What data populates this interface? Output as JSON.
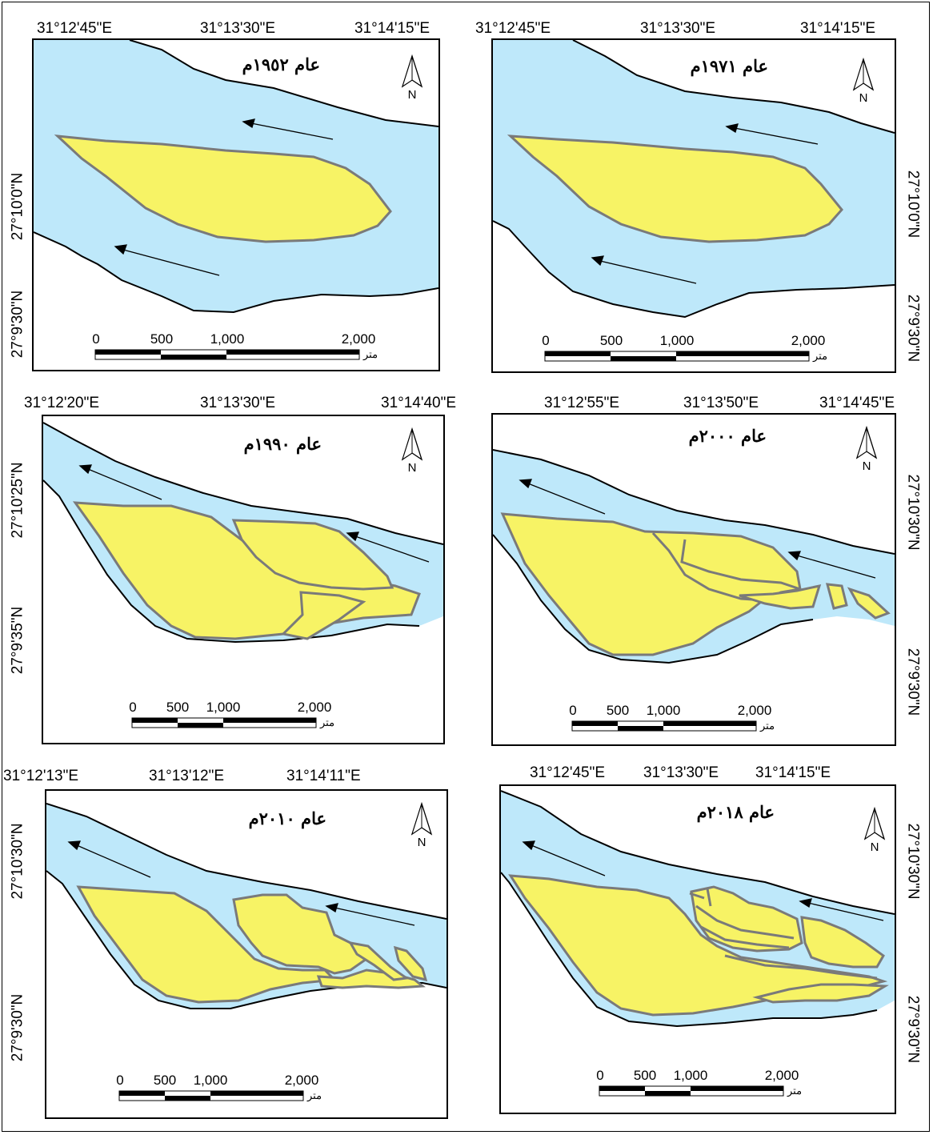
{
  "panels": [
    {
      "id": "1952",
      "title": "عام ١٩٥٢م",
      "x_ticks": [
        "31°12'45\"E",
        "31°13'30\"E",
        "31°14'15\"E"
      ],
      "y_ticks": [
        "27°10'0\"N",
        "27°9'30\"N"
      ],
      "y_side": "left",
      "scale_labels": [
        "0",
        "500",
        "1,000",
        "2,000"
      ],
      "scale_unit": "متر",
      "north": "N"
    },
    {
      "id": "1971",
      "title": "عام ١٩٧١م",
      "x_ticks": [
        "31°12'45\"E",
        "31°13'30\"E",
        "31°14'15\"E"
      ],
      "y_ticks": [
        "27°10'0\"N",
        "27°9'30\"N"
      ],
      "y_side": "right",
      "scale_labels": [
        "0",
        "500",
        "1,000",
        "2,000"
      ],
      "scale_unit": "متر",
      "north": "N"
    },
    {
      "id": "1990",
      "title": "عام ١٩٩٠م",
      "x_ticks": [
        "31°12'20\"E",
        "31°13'30\"E",
        "31°14'40\"E"
      ],
      "y_ticks": [
        "27°10'25\"N",
        "27°9'35\"N"
      ],
      "y_side": "left",
      "scale_labels": [
        "0",
        "500",
        "1,000",
        "2,000"
      ],
      "scale_unit": "متر",
      "north": "N"
    },
    {
      "id": "2000",
      "title": "عام ٢٠٠٠م",
      "x_ticks": [
        "31°12'55\"E",
        "31°13'50\"E",
        "31°14'45\"E"
      ],
      "y_ticks": [
        "27°10'30\"N",
        "27°9'30\"N"
      ],
      "y_side": "right",
      "scale_labels": [
        "0",
        "500",
        "1,000",
        "2,000"
      ],
      "scale_unit": "متر",
      "north": "N"
    },
    {
      "id": "2010",
      "title": "عام ٢٠١٠م",
      "x_ticks": [
        "31°12'13\"E",
        "31°13'12\"E",
        "31°14'11\"E"
      ],
      "y_ticks": [
        "27°10'30\"N",
        "27°9'30\"N"
      ],
      "y_side": "left",
      "scale_labels": [
        "0",
        "500",
        "1,000",
        "2,000"
      ],
      "scale_unit": "متر",
      "north": "N"
    },
    {
      "id": "2018",
      "title": "عام ٢٠١٨م",
      "x_ticks": [
        "31°12'45\"E",
        "31°13'30\"E",
        "31°14'15\"E"
      ],
      "y_ticks": [
        "27°10'30\"N",
        "27°9'30\"N"
      ],
      "y_side": "right",
      "scale_labels": [
        "0",
        "500",
        "1,000",
        "2,000"
      ],
      "scale_unit": "متر",
      "north": "N"
    }
  ],
  "colors": {
    "water": "#bee8fa",
    "island": "#f7f365",
    "island_edge": "#7a7a7a",
    "bank_line": "#000000"
  }
}
